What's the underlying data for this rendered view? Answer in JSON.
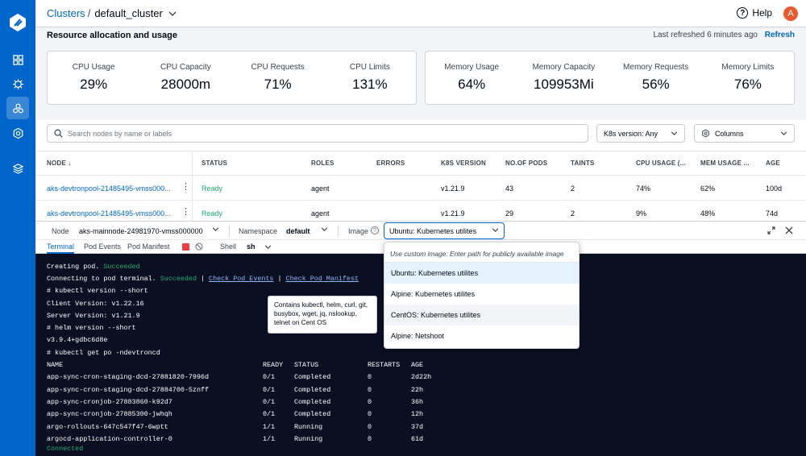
{
  "breadcrumb": {
    "parent": "Clusters",
    "separator": "/",
    "current": "default_cluster"
  },
  "header": {
    "help_label": "Help",
    "avatar_initial": "A"
  },
  "resources": {
    "title": "Resource allocation and usage",
    "last_refreshed": "Last refreshed 6 minutes ago",
    "refresh_label": "Refresh",
    "cpu": [
      {
        "label": "CPU Usage",
        "value": "29%"
      },
      {
        "label": "CPU Capacity",
        "value": "28000m"
      },
      {
        "label": "CPU Requests",
        "value": "71%"
      },
      {
        "label": "CPU Limits",
        "value": "131%"
      }
    ],
    "memory": [
      {
        "label": "Memory Usage",
        "value": "64%"
      },
      {
        "label": "Memory Capacity",
        "value": "109953Mi"
      },
      {
        "label": "Memory Requests",
        "value": "56%"
      },
      {
        "label": "Memory Limits",
        "value": "76%"
      }
    ]
  },
  "filters": {
    "search_placeholder": "Search nodes by name or labels",
    "k8s_version": "K8s version: Any",
    "columns": "Columns"
  },
  "table": {
    "headers": [
      "NODE",
      "STATUS",
      "ROLES",
      "ERRORS",
      "K8S VERSION",
      "NO.OF PODS",
      "TAINTS",
      "CPU USAGE (...",
      "MEM USAGE ...",
      "AGE"
    ],
    "rows": [
      [
        "aks-devtronpool-21485495-vmss000...",
        "Ready",
        "agent",
        "",
        "v1.21.9",
        "43",
        "2",
        "74%",
        "62%",
        "100d"
      ],
      [
        "aks-devtronpool-21485495-vmss000...",
        "Ready",
        "agent",
        "",
        "v1.21.9",
        "29",
        "2",
        "9%",
        "48%",
        "74d"
      ]
    ]
  },
  "terminal_bar": {
    "node_label": "Node",
    "node_value": "aks-mainnode-24981970-vmss000000",
    "namespace_label": "Namespace",
    "namespace_value": "default",
    "image_label": "Image",
    "image_value": "Ubuntu: Kubernetes utilites",
    "help_mark": "?"
  },
  "tabs": {
    "terminal": "Terminal",
    "pod_events": "Pod Events",
    "pod_manifest": "Pod Manifest",
    "shell_label": "Shell",
    "shell_value": "sh"
  },
  "terminal": {
    "l1a": "Creating pod. ",
    "l1b": "Succeeded",
    "l2a": "Connecting to pod terminal. ",
    "l2b": "Succeeded",
    "l2c": " | ",
    "l2d": "Check Pod Events",
    "l2e": " | ",
    "l2f": "Check Pod Manifest",
    "l3": "# kubectl version --short",
    "l4": "Client Version: v1.22.16",
    "l5": "Server Version: v1.21.9",
    "l6": "# helm version --short",
    "l7": "v3.9.4+gdbc6d8e",
    "l8": "# kubectl get po -ndevtroncd",
    "pods_header": [
      "NAME",
      "READY",
      "STATUS",
      "RESTARTS",
      "AGE"
    ],
    "pods": [
      [
        "app-sync-cron-staging-dcd-27881820-7996d",
        "0/1",
        "Completed",
        "0",
        "2d22h"
      ],
      [
        "app-sync-cron-staging-dcd-27884700-5znff",
        "0/1",
        "Completed",
        "0",
        "22h"
      ],
      [
        "app-sync-cronjob-27883860-k92d7",
        "0/1",
        "Completed",
        "0",
        "36h"
      ],
      [
        "app-sync-cronjob-27885300-jwhqh",
        "0/1",
        "Completed",
        "0",
        "12h"
      ],
      [
        "argo-rollouts-647c547f47-6wptt",
        "1/1",
        "Running",
        "0",
        "37d"
      ],
      [
        "argocd-application-controller-0",
        "1/1",
        "Running",
        "0",
        "61d"
      ]
    ],
    "connected": "Connected"
  },
  "tooltip": "Contains kubectl, helm, curl, git, busybox, wget, jq, nslookup, telnet on Cent OS",
  "image_dropdown": {
    "custom": "Use custom image: Enter path for publicly available image",
    "options": [
      "Ubuntu: Kubernetes utilites",
      "Alpine: Kubernetes utilites",
      "CentOS: Kubernetes utilites",
      "Alpine: Netshoot"
    ]
  },
  "colors": {
    "brand": "#0066cc",
    "success": "#1dad70",
    "terminal_bg": "#0b0f22",
    "danger": "#f33e3e"
  }
}
